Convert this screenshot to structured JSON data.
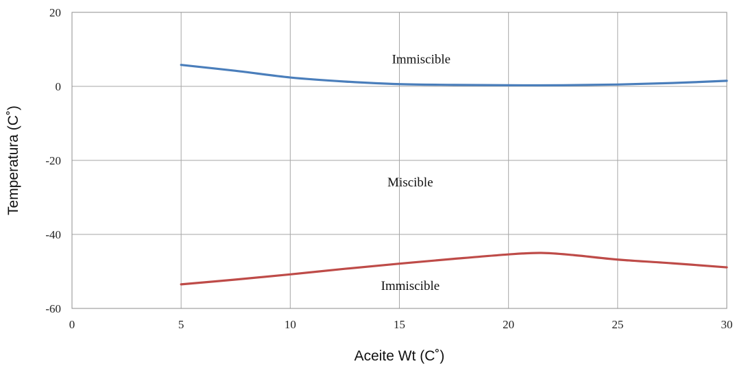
{
  "chart_data": {
    "type": "line",
    "xlabel": "Aceite Wt (C˚)",
    "ylabel": "Temperatura (C˚)",
    "xlim": [
      0,
      30
    ],
    "ylim": [
      -60,
      20
    ],
    "xticks": [
      0,
      5,
      10,
      15,
      20,
      25,
      30
    ],
    "yticks": [
      20,
      0,
      -20,
      -40,
      -60
    ],
    "grid": true,
    "series": [
      {
        "color": "#4a7ebb",
        "x": [
          5,
          7.5,
          10,
          12.5,
          15,
          17.5,
          20,
          22.5,
          25,
          27.5,
          30
        ],
        "y": [
          5.8,
          4.2,
          2.4,
          1.3,
          0.6,
          0.4,
          0.3,
          0.3,
          0.5,
          0.9,
          1.5
        ]
      },
      {
        "color": "#be4b48",
        "x": [
          5,
          7.5,
          10,
          12.5,
          15,
          17.5,
          20,
          21.5,
          23,
          25,
          27.5,
          30
        ],
        "y": [
          -53.5,
          -52.2,
          -50.8,
          -49.3,
          -47.9,
          -46.6,
          -45.4,
          -45.0,
          -45.6,
          -46.8,
          -47.8,
          -48.9
        ]
      }
    ],
    "annotations": [
      {
        "text": "Immiscible",
        "x": 16,
        "y": 6.2
      },
      {
        "text": "Miscible",
        "x": 15.5,
        "y": -27
      },
      {
        "text": "Immiscible",
        "x": 15.5,
        "y": -55
      }
    ]
  }
}
